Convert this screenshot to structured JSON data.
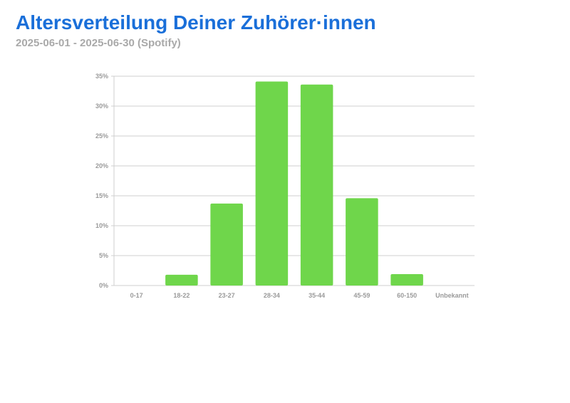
{
  "header": {
    "title": "Altersverteilung Deiner Zuhörer·innen",
    "subtitle": "2025-06-01 - 2025-06-30 (Spotify)"
  },
  "colors": {
    "bar": "#6fd64b",
    "grid": "#cfcfcf",
    "title": "#1a6fd9",
    "subtitle": "#a9a9a9",
    "tick": "#9a9a9a"
  },
  "chart_data": {
    "type": "bar",
    "title": "Altersverteilung Deiner Zuhörer·innen",
    "subtitle": "2025-06-01 - 2025-06-30 (Spotify)",
    "xlabel": "",
    "ylabel": "",
    "categories": [
      "0-17",
      "18-22",
      "23-27",
      "28-34",
      "35-44",
      "45-59",
      "60-150",
      "Unbekannt"
    ],
    "values": [
      0,
      1.8,
      13.7,
      34.1,
      33.6,
      14.6,
      1.9,
      0
    ],
    "ylim": [
      0,
      35
    ],
    "yticks": [
      "0%",
      "5%",
      "10%",
      "15%",
      "20%",
      "25%",
      "30%",
      "35%"
    ],
    "grid": true,
    "legend": "none"
  }
}
